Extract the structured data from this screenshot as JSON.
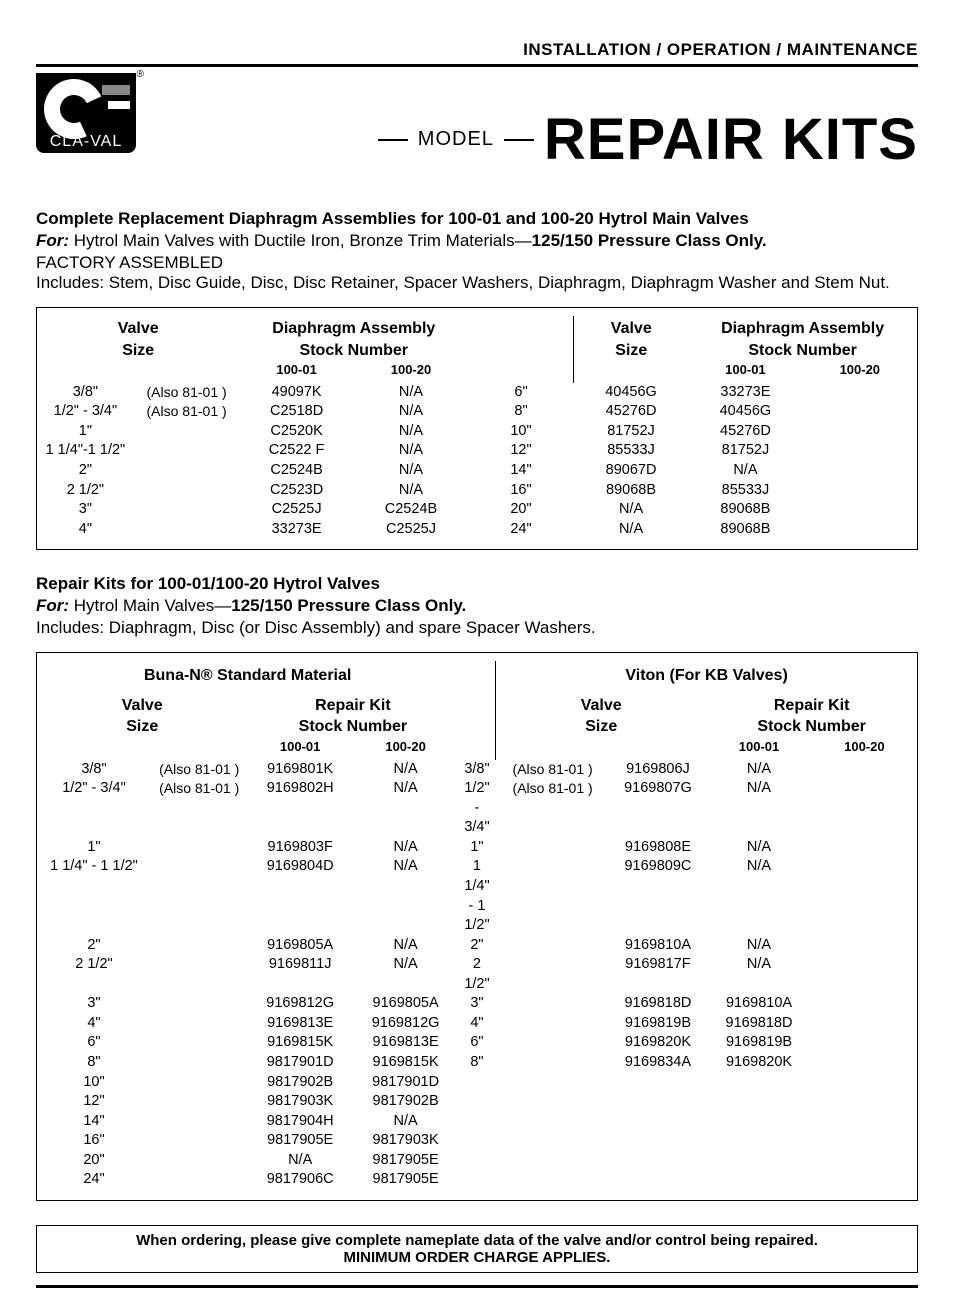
{
  "topbar": "INSTALLATION / OPERATION / MAINTENANCE",
  "logo": {
    "brand": "CLA-VAL",
    "reg": "®"
  },
  "title": {
    "model_label": "MODEL",
    "main": "REPAIR KITS"
  },
  "section1": {
    "heading": "Complete Replacement Diaphragm Assemblies for 100-01 and 100-20 Hytrol Main Valves",
    "for_label": "For:",
    "for_text_plain": " Hytrol Main Valves with Ductile Iron, Bronze Trim Materials—",
    "for_text_bold": "125/150 Pressure Class Only.",
    "factory": "FACTORY ASSEMBLED",
    "includes": "Includes: Stem, Disc Guide, Disc, Disc Retainer, Spacer Washers, Diaphragm, Diaphragm Washer and Stem Nut."
  },
  "table1": {
    "hdr_valve_size": "Valve\nSize",
    "hdr_assy": "Diaphragm Assembly\nStock Number",
    "hdr_100_01": "100-01",
    "hdr_100_20": "100-20",
    "left": [
      {
        "size": "3/8\"",
        "note": "(Also 81-01 )",
        "c1": "49097K",
        "c2": "N/A"
      },
      {
        "size": "1/2\" - 3/4\"",
        "note": "(Also 81-01 )",
        "c1": "C2518D",
        "c2": "N/A"
      },
      {
        "size": "1\"",
        "note": "",
        "c1": "C2520K",
        "c2": "N/A"
      },
      {
        "size": "1 1/4\"-1 1/2\"",
        "note": "",
        "c1": "C2522 F",
        "c2": "N/A"
      },
      {
        "size": "2\"",
        "note": "",
        "c1": "C2524B",
        "c2": "N/A"
      },
      {
        "size": "2 1/2\"",
        "note": "",
        "c1": "C2523D",
        "c2": "N/A"
      },
      {
        "size": "3\"",
        "note": "",
        "c1": "C2525J",
        "c2": "C2524B"
      },
      {
        "size": "4\"",
        "note": "",
        "c1": "33273E",
        "c2": "C2525J"
      }
    ],
    "right": [
      {
        "size": "6\"",
        "c1": "40456G",
        "c2": "33273E"
      },
      {
        "size": "8\"",
        "c1": "45276D",
        "c2": "40456G"
      },
      {
        "size": "10\"",
        "c1": "81752J",
        "c2": "45276D"
      },
      {
        "size": "12\"",
        "c1": "85533J",
        "c2": "81752J"
      },
      {
        "size": "14\"",
        "c1": "89067D",
        "c2": "N/A"
      },
      {
        "size": "16\"",
        "c1": "89068B",
        "c2": "85533J"
      },
      {
        "size": "20\"",
        "c1": "N/A",
        "c2": "89068B"
      },
      {
        "size": "24\"",
        "c1": "N/A",
        "c2": "89068B"
      }
    ]
  },
  "section2": {
    "heading": "Repair Kits for 100-01/100-20 Hytrol Valves",
    "for_label": "For:",
    "for_text_plain": " Hytrol Main Valves—",
    "for_text_bold": "125/150 Pressure Class Only.",
    "includes": "Includes: Diaphragm, Disc (or Disc Assembly) and spare Spacer Washers."
  },
  "table2": {
    "mat_left": "Buna-N® Standard Material",
    "mat_right": "Viton (For KB Valves)",
    "hdr_valve_size": "Valve\nSize",
    "hdr_kit": "Repair Kit\nStock Number",
    "hdr_100_01": "100-01",
    "hdr_100_20": "100-20",
    "left": [
      {
        "size": "3/8\"",
        "note": "(Also 81-01 )",
        "c1": "9169801K",
        "c2": "N/A"
      },
      {
        "size": "1/2\" - 3/4\"",
        "note": "(Also 81-01 )",
        "c1": "9169802H",
        "c2": "N/A"
      },
      {
        "size": "1\"",
        "note": "",
        "c1": "9169803F",
        "c2": "N/A"
      },
      {
        "size": "1 1/4\" - 1 1/2\"",
        "note": "",
        "c1": "9169804D",
        "c2": "N/A"
      },
      {
        "size": "2\"",
        "note": "",
        "c1": "9169805A",
        "c2": "N/A"
      },
      {
        "size": "2 1/2\"",
        "note": "",
        "c1": "9169811J",
        "c2": "N/A"
      },
      {
        "size": "3\"",
        "note": "",
        "c1": "9169812G",
        "c2": "9169805A"
      },
      {
        "size": "4\"",
        "note": "",
        "c1": "9169813E",
        "c2": "9169812G"
      },
      {
        "size": "6\"",
        "note": "",
        "c1": "9169815K",
        "c2": "9169813E"
      },
      {
        "size": "8\"",
        "note": "",
        "c1": "9817901D",
        "c2": "9169815K"
      },
      {
        "size": "10\"",
        "note": "",
        "c1": "9817902B",
        "c2": "9817901D"
      },
      {
        "size": "12\"",
        "note": "",
        "c1": "9817903K",
        "c2": "9817902B"
      },
      {
        "size": "14\"",
        "note": "",
        "c1": "9817904H",
        "c2": "N/A"
      },
      {
        "size": "16\"",
        "note": "",
        "c1": "9817905E",
        "c2": "9817903K"
      },
      {
        "size": "20\"",
        "note": "",
        "c1": "N/A",
        "c2": "9817905E"
      },
      {
        "size": "24\"",
        "note": "",
        "c1": "9817906C",
        "c2": "9817905E"
      }
    ],
    "right": [
      {
        "size": "3/8\"",
        "note": "(Also 81-01 )",
        "c1": "9169806J",
        "c2": "N/A"
      },
      {
        "size": "1/2\" - 3/4\"",
        "note": "(Also 81-01 )",
        "c1": "9169807G",
        "c2": "N/A"
      },
      {
        "size": "1\"",
        "note": "",
        "c1": "9169808E",
        "c2": "N/A"
      },
      {
        "size": "1 1/4\" - 1 1/2\"",
        "note": "",
        "c1": "9169809C",
        "c2": "N/A"
      },
      {
        "size": "2\"",
        "note": "",
        "c1": "9169810A",
        "c2": "N/A"
      },
      {
        "size": "2 1/2\"",
        "note": "",
        "c1": "9169817F",
        "c2": "N/A"
      },
      {
        "size": "3\"",
        "note": "",
        "c1": "9169818D",
        "c2": "9169810A"
      },
      {
        "size": "4\"",
        "note": "",
        "c1": "9169819B",
        "c2": "9169818D"
      },
      {
        "size": "6\"",
        "note": "",
        "c1": "9169820K",
        "c2": "9169819B"
      },
      {
        "size": "8\"",
        "note": "",
        "c1": "9169834A",
        "c2": "9169820K"
      }
    ]
  },
  "footer": {
    "line1": "When ordering, please give complete nameplate data of the valve and/or control being repaired.",
    "line2": "MINIMUM ORDER CHARGE APPLIES."
  }
}
